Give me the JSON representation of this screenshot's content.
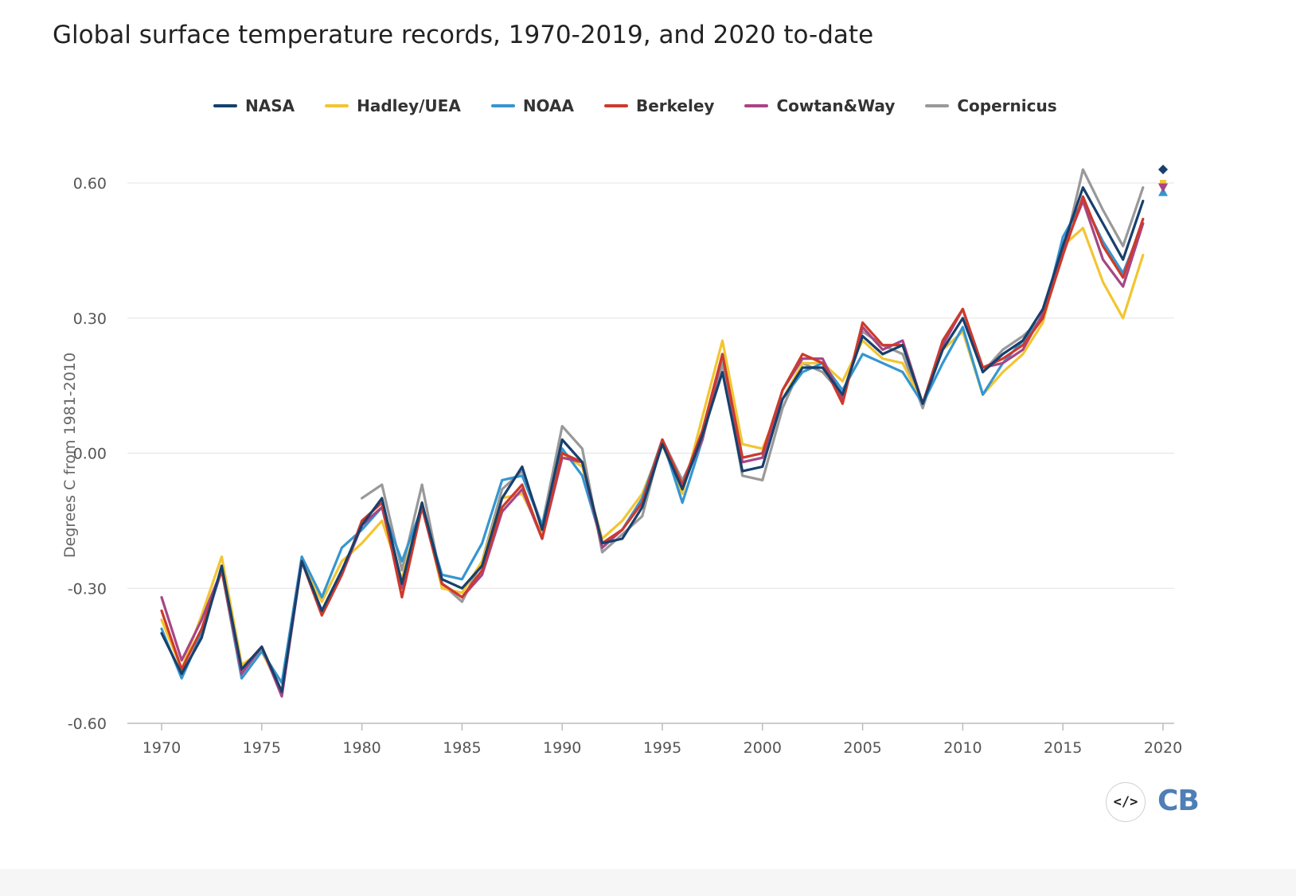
{
  "title": "Global surface temperature records, 1970-2019, and 2020 to-date",
  "branding": {
    "embed_icon": "</>",
    "logo_text": "CB"
  },
  "chart_data": {
    "type": "line",
    "title": "Global surface temperature records, 1970-2019, and 2020 to-date",
    "ylabel": "Degrees C from 1981-2010",
    "xlabel": "",
    "xlim": [
      1970,
      2020
    ],
    "ylim": [
      -0.6,
      0.6
    ],
    "x_ticks": [
      "1970",
      "1975",
      "1980",
      "1985",
      "1990",
      "1995",
      "2000",
      "2005",
      "2010",
      "2015",
      "2020"
    ],
    "y_ticks": [
      "-0.60",
      "-0.30",
      "0.00",
      "0.30",
      "0.60"
    ],
    "grid": true,
    "legend_position": "top",
    "x": [
      1970,
      1971,
      1972,
      1973,
      1974,
      1975,
      1976,
      1977,
      1978,
      1979,
      1980,
      1981,
      1982,
      1983,
      1984,
      1985,
      1986,
      1987,
      1988,
      1989,
      1990,
      1991,
      1992,
      1993,
      1994,
      1995,
      1996,
      1997,
      1998,
      1999,
      2000,
      2001,
      2002,
      2003,
      2004,
      2005,
      2006,
      2007,
      2008,
      2009,
      2010,
      2011,
      2012,
      2013,
      2014,
      2015,
      2016,
      2017,
      2018,
      2019
    ],
    "series": [
      {
        "name": "NASA",
        "color": "#17406d",
        "values": [
          -0.4,
          -0.49,
          -0.41,
          -0.25,
          -0.48,
          -0.43,
          -0.53,
          -0.24,
          -0.35,
          -0.26,
          -0.16,
          -0.1,
          -0.29,
          -0.11,
          -0.28,
          -0.3,
          -0.25,
          -0.1,
          -0.03,
          -0.17,
          0.03,
          -0.02,
          -0.2,
          -0.19,
          -0.12,
          0.02,
          -0.08,
          0.04,
          0.18,
          -0.04,
          -0.03,
          0.12,
          0.19,
          0.19,
          0.13,
          0.26,
          0.22,
          0.24,
          0.11,
          0.23,
          0.3,
          0.18,
          0.22,
          0.25,
          0.32,
          0.46,
          0.59,
          0.51,
          0.43,
          0.56
        ],
        "forecast_2020": 0.63
      },
      {
        "name": "Hadley/UEA",
        "color": "#f2c531",
        "values": [
          -0.37,
          -0.48,
          -0.36,
          -0.23,
          -0.47,
          -0.44,
          -0.53,
          -0.24,
          -0.33,
          -0.24,
          -0.2,
          -0.15,
          -0.28,
          -0.11,
          -0.3,
          -0.31,
          -0.24,
          -0.1,
          -0.09,
          -0.18,
          0.0,
          -0.03,
          -0.19,
          -0.15,
          -0.09,
          0.02,
          -0.09,
          0.08,
          0.25,
          0.02,
          0.01,
          0.12,
          0.2,
          0.2,
          0.16,
          0.25,
          0.21,
          0.2,
          0.11,
          0.23,
          0.27,
          0.13,
          0.18,
          0.22,
          0.29,
          0.46,
          0.5,
          0.38,
          0.3,
          0.44
        ],
        "forecast_2020": 0.6
      },
      {
        "name": "NOAA",
        "color": "#3596d0",
        "values": [
          -0.39,
          -0.5,
          -0.4,
          -0.26,
          -0.5,
          -0.44,
          -0.51,
          -0.23,
          -0.32,
          -0.21,
          -0.17,
          -0.12,
          -0.24,
          -0.12,
          -0.27,
          -0.28,
          -0.2,
          -0.06,
          -0.05,
          -0.16,
          0.01,
          -0.05,
          -0.2,
          -0.17,
          -0.1,
          0.03,
          -0.11,
          0.03,
          0.22,
          -0.01,
          0.0,
          0.12,
          0.18,
          0.2,
          0.14,
          0.22,
          0.2,
          0.18,
          0.11,
          0.2,
          0.28,
          0.13,
          0.2,
          0.25,
          0.3,
          0.48,
          0.56,
          0.47,
          0.4,
          0.51
        ],
        "forecast_2020": 0.58
      },
      {
        "name": "Berkeley",
        "color": "#cd3a2b",
        "values": [
          -0.35,
          -0.48,
          -0.39,
          -0.26,
          -0.48,
          -0.43,
          -0.53,
          -0.24,
          -0.36,
          -0.27,
          -0.15,
          -0.11,
          -0.32,
          -0.12,
          -0.29,
          -0.32,
          -0.26,
          -0.12,
          -0.07,
          -0.19,
          0.0,
          -0.02,
          -0.2,
          -0.17,
          -0.11,
          0.03,
          -0.07,
          0.05,
          0.22,
          -0.01,
          0.0,
          0.14,
          0.22,
          0.2,
          0.11,
          0.29,
          0.24,
          0.24,
          0.11,
          0.25,
          0.32,
          0.19,
          0.21,
          0.24,
          0.3,
          0.44,
          0.57,
          0.46,
          0.39,
          0.52
        ],
        "forecast_2020": 0.59
      },
      {
        "name": "Cowtan&Way",
        "color": "#a64685",
        "values": [
          -0.32,
          -0.46,
          -0.37,
          -0.26,
          -0.49,
          -0.43,
          -0.54,
          -0.24,
          -0.36,
          -0.27,
          -0.16,
          -0.12,
          -0.3,
          -0.12,
          -0.29,
          -0.32,
          -0.27,
          -0.13,
          -0.08,
          -0.19,
          -0.01,
          -0.02,
          -0.21,
          -0.17,
          -0.11,
          0.03,
          -0.07,
          0.03,
          0.22,
          -0.02,
          -0.01,
          0.14,
          0.21,
          0.21,
          0.12,
          0.28,
          0.23,
          0.25,
          0.11,
          0.24,
          0.32,
          0.19,
          0.2,
          0.23,
          0.31,
          0.45,
          0.56,
          0.43,
          0.37,
          0.51
        ],
        "forecast_2020": 0.59
      },
      {
        "name": "Copernicus",
        "color": "#999999",
        "values": [
          null,
          null,
          null,
          null,
          null,
          null,
          null,
          null,
          null,
          null,
          -0.1,
          -0.07,
          -0.26,
          -0.07,
          -0.29,
          -0.33,
          -0.24,
          -0.08,
          -0.04,
          -0.16,
          0.06,
          0.01,
          -0.22,
          -0.18,
          -0.14,
          0.03,
          -0.06,
          0.03,
          0.2,
          -0.05,
          -0.06,
          0.1,
          0.2,
          0.18,
          0.13,
          0.27,
          0.24,
          0.22,
          0.1,
          0.24,
          0.32,
          0.18,
          0.23,
          0.26,
          0.3,
          0.44,
          0.63,
          0.54,
          0.46,
          0.59
        ],
        "forecast_2020": 0.63
      }
    ]
  }
}
